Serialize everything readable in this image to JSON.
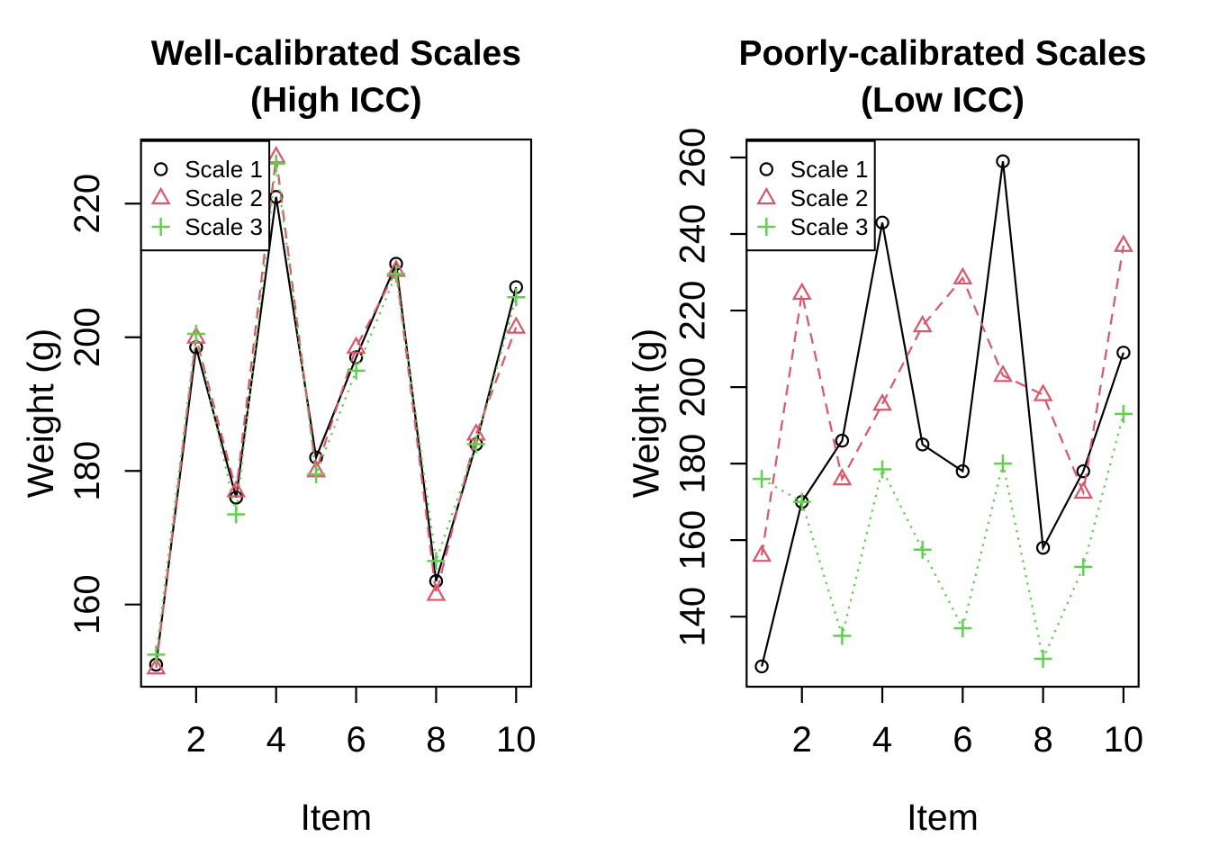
{
  "figure": {
    "background": "#ffffff",
    "text_color": "#000000"
  },
  "chart_data": [
    {
      "type": "line",
      "panel": "left",
      "title_lines": [
        "Well-calibrated Scales",
        "(High ICC)"
      ],
      "xlabel": "Item",
      "ylabel": "Weight (g)",
      "x": [
        1,
        2,
        3,
        4,
        5,
        6,
        7,
        8,
        9,
        10
      ],
      "x_ticks": [
        2,
        4,
        6,
        8,
        10
      ],
      "y_ticks": [
        160,
        180,
        200,
        220
      ],
      "xlim": [
        0.624,
        10.376
      ],
      "ylim": [
        147.7,
        229.6
      ],
      "grid": false,
      "legend_position": "topleft",
      "series": [
        {
          "name": "Scale 1",
          "marker": "circle",
          "linetype": "solid",
          "color": "#000000",
          "values": [
            151,
            198.5,
            176,
            221,
            182,
            197,
            211,
            163.5,
            184,
            207.5
          ]
        },
        {
          "name": "Scale 2",
          "marker": "triangle",
          "linetype": "dashed",
          "color": "#DF536B",
          "values": [
            150.5,
            200,
            177,
            227,
            180,
            198.5,
            210,
            161.5,
            185.5,
            201.5
          ]
        },
        {
          "name": "Scale 3",
          "marker": "plus",
          "linetype": "dotted",
          "color": "#61D04F",
          "values": [
            152.5,
            200.5,
            173.5,
            226,
            179.5,
            195,
            209.5,
            166.5,
            184,
            206
          ]
        }
      ]
    },
    {
      "type": "line",
      "panel": "right",
      "title_lines": [
        "Poorly-calibrated Scales",
        "(Low ICC)"
      ],
      "xlabel": "Item",
      "ylabel": "Weight (g)",
      "x": [
        1,
        2,
        3,
        4,
        5,
        6,
        7,
        8,
        9,
        10
      ],
      "x_ticks": [
        2,
        4,
        6,
        8,
        10
      ],
      "y_ticks": [
        140,
        160,
        180,
        200,
        220,
        240,
        260
      ],
      "xlim": [
        0.624,
        10.376
      ],
      "ylim": [
        121.7,
        264.7
      ],
      "grid": false,
      "legend_position": "topleft",
      "series": [
        {
          "name": "Scale 1",
          "marker": "circle",
          "linetype": "solid",
          "color": "#000000",
          "values": [
            127,
            170,
            186,
            243,
            185,
            178,
            259,
            158,
            178,
            209
          ]
        },
        {
          "name": "Scale 2",
          "marker": "triangle",
          "linetype": "dashed",
          "color": "#DF536B",
          "values": [
            156,
            224.5,
            176,
            195.5,
            216,
            228.5,
            203,
            198,
            172.5,
            237
          ]
        },
        {
          "name": "Scale 3",
          "marker": "plus",
          "linetype": "dotted",
          "color": "#61D04F",
          "values": [
            176,
            170,
            135,
            178.5,
            157.5,
            137,
            180,
            129,
            153,
            193
          ]
        }
      ]
    }
  ]
}
